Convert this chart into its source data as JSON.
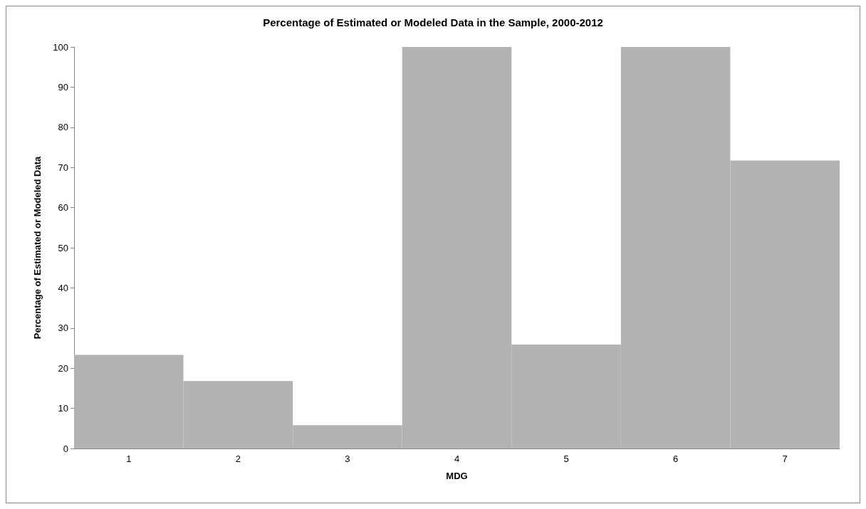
{
  "chart_data": {
    "type": "bar",
    "title": "Percentage of Estimated or Modeled Data in the Sample, 2000-2012",
    "xlabel": "MDG",
    "ylabel": "Percentage of Estimated or Modeled Data",
    "categories": [
      "1",
      "2",
      "3",
      "4",
      "5",
      "6",
      "7"
    ],
    "values": [
      23.3,
      16.8,
      5.8,
      100,
      25.9,
      100,
      71.7
    ],
    "color": "#b3b3b3",
    "ylim": [
      0,
      100
    ],
    "yticks": [
      0,
      10,
      20,
      30,
      40,
      50,
      60,
      70,
      80,
      90,
      100
    ],
    "grid": false
  }
}
